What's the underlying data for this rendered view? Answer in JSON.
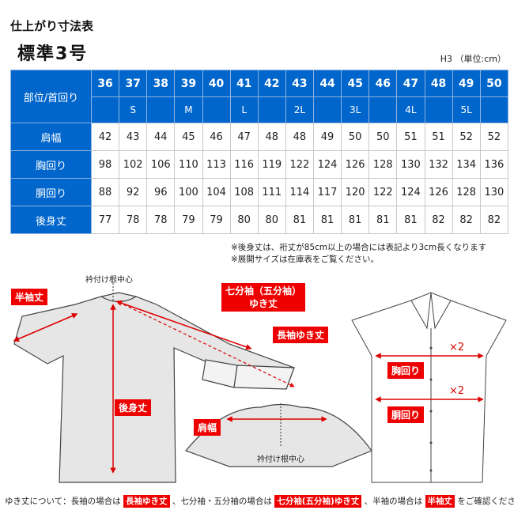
{
  "title": "仕上がり寸法表",
  "subtitle": "標準3号",
  "unit": "H3 （単位:cm）",
  "table": {
    "corner": "部位/首回り",
    "neck_sizes": [
      "36",
      "37",
      "38",
      "39",
      "40",
      "41",
      "42",
      "43",
      "44",
      "45",
      "46",
      "47",
      "48",
      "49",
      "50"
    ],
    "size_labels": [
      "",
      "S",
      "",
      "M",
      "",
      "L",
      "",
      "2L",
      "",
      "3L",
      "",
      "4L",
      "",
      "5L",
      ""
    ],
    "rows": [
      {
        "label": "肩幅",
        "values": [
          "42",
          "43",
          "44",
          "45",
          "46",
          "47",
          "48",
          "48",
          "49",
          "50",
          "50",
          "51",
          "51",
          "52",
          "52"
        ]
      },
      {
        "label": "胸回り",
        "values": [
          "98",
          "102",
          "106",
          "110",
          "113",
          "116",
          "119",
          "122",
          "124",
          "126",
          "128",
          "130",
          "132",
          "134",
          "136"
        ]
      },
      {
        "label": "胴回り",
        "values": [
          "88",
          "92",
          "96",
          "100",
          "104",
          "108",
          "111",
          "114",
          "117",
          "120",
          "122",
          "124",
          "126",
          "128",
          "130"
        ]
      },
      {
        "label": "後身丈",
        "values": [
          "77",
          "78",
          "78",
          "79",
          "79",
          "80",
          "80",
          "81",
          "81",
          "81",
          "81",
          "81",
          "82",
          "82",
          "82"
        ]
      }
    ]
  },
  "notes": [
    "※後身丈は、裄丈が85cm以上の場合には表記より3cm長くなります",
    "※展開サイズは在庫表をご覧ください。"
  ],
  "diagram": {
    "neck_point_top": "衿付け根中心",
    "neck_point_bottom": "衿付け根中心",
    "half_sleeve": "半袖丈",
    "three_quarter_sleeve_l1": "七分袖（五分袖）",
    "three_quarter_sleeve_l2": "ゆき丈",
    "long_sleeve": "長袖ゆき丈",
    "back_length": "後身丈",
    "shoulder": "肩幅",
    "chest": "胸回り",
    "waist": "胴回り",
    "times2a": "×2",
    "times2b": "×2"
  },
  "footer": {
    "t1": "ゆき丈について：長袖の場合は",
    "b1": "長袖ゆき丈",
    "t2": "、七分袖・五分袖の場合は",
    "b2": "七分袖(五分袖)ゆき丈",
    "t3": "、半袖の場合は",
    "b3": "半袖丈",
    "t4": "をご確認ください。"
  },
  "colors": {
    "header_blue": "#0066cc",
    "label_red": "#ee0000",
    "arrow_red": "#dd0000"
  }
}
